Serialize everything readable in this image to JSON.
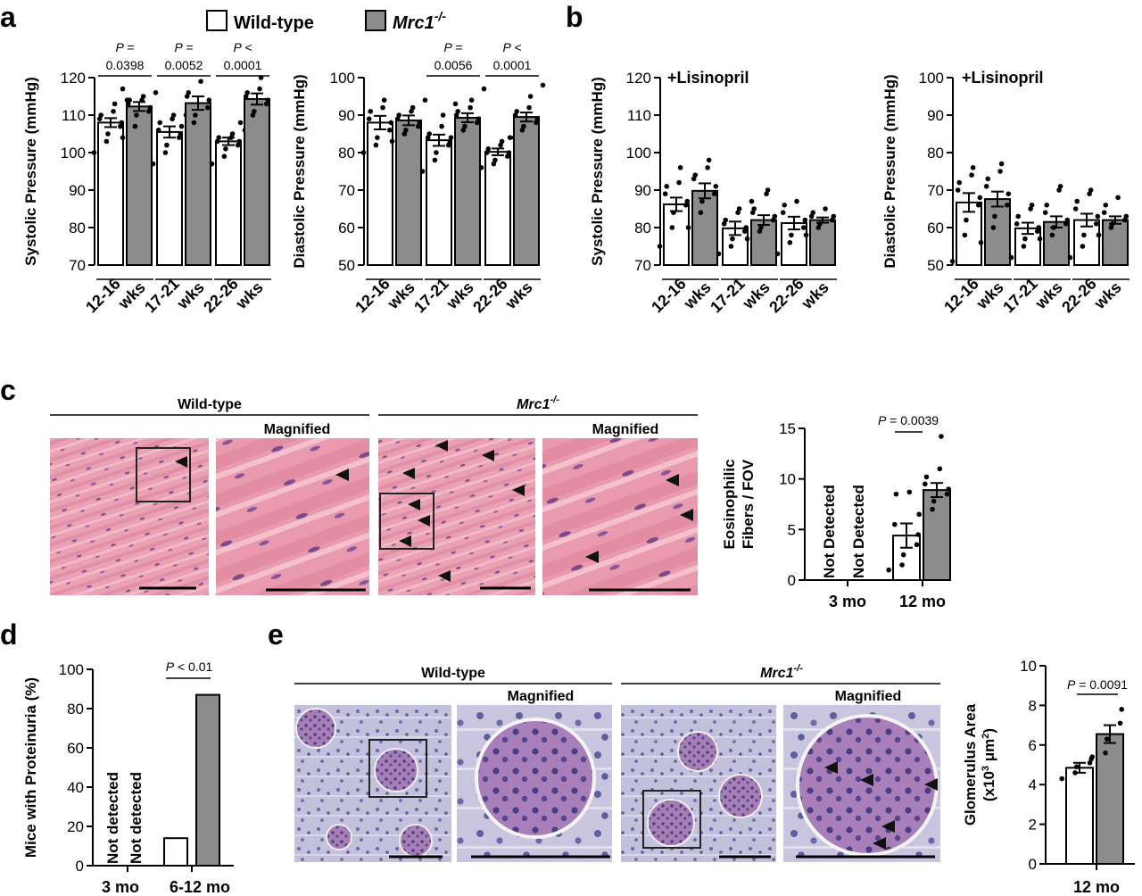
{
  "panel_labels": [
    "a",
    "b",
    "c",
    "d",
    "e"
  ],
  "legend": {
    "wt": "Wild-type",
    "ko": "Mrc1",
    "ko_sup": "-/-"
  },
  "colors": {
    "wt_fill": "#ffffff",
    "ko_fill": "#8c8c8c",
    "axis": "#000000",
    "tissue_pink": "#e8a0b0",
    "tissue_purple": "#b9b5d6"
  },
  "labels": {
    "lisinopril": "+Lisinopril",
    "wt_title": "Wild-type",
    "ko_title": "Mrc1",
    "ko_sup": "-/-",
    "magnified": "Magnified"
  },
  "chart_data": [
    {
      "id": "a_systolic",
      "type": "bar",
      "ylabel": "Systolic Pressure (mmHg)",
      "ylim": [
        70,
        120
      ],
      "yticks": [
        70,
        80,
        90,
        100,
        110,
        120
      ],
      "categories": [
        [
          "12-16",
          "wks"
        ],
        [
          "17-21",
          "wks"
        ],
        [
          "22-26",
          "wks"
        ]
      ],
      "series": [
        {
          "name": "Wild-type",
          "values": [
            108,
            105.5,
            103
          ],
          "sem": [
            1.2,
            1.5,
            1.0
          ],
          "points": [
            [
              100,
              103,
              105,
              107,
              108,
              109,
              110,
              111,
              113,
              114
            ],
            [
              97,
              100,
              102,
              104,
              105,
              106,
              108,
              109,
              110,
              110
            ],
            [
              97,
              99,
              101,
              102,
              103,
              103,
              104,
              104,
              105,
              106
            ]
          ]
        },
        {
          "name": "Mrc1-/-",
          "values": [
            112.3,
            113.2,
            114.3
          ],
          "sem": [
            1.2,
            1.8,
            1.5
          ],
          "points": [
            [
              104,
              107,
              110,
              111,
              112,
              113,
              114,
              114,
              115,
              116,
              117
            ],
            [
              107,
              108,
              110,
              112,
              114,
              115,
              116,
              119
            ],
            [
              108,
              110,
              111,
              113,
              114,
              115,
              116,
              117,
              120
            ]
          ]
        }
      ],
      "pvalues": [
        {
          "prefix": "P =",
          "value": "0.0398"
        },
        {
          "prefix": "P =",
          "value": "0.0052"
        },
        {
          "prefix": "P <",
          "value": "0.0001"
        }
      ]
    },
    {
      "id": "a_diastolic",
      "type": "bar",
      "ylabel": "Diastolic Pressure (mmHg)",
      "ylim": [
        50,
        100
      ],
      "yticks": [
        50,
        60,
        70,
        80,
        90,
        100
      ],
      "categories": [
        [
          "12-16",
          "wks"
        ],
        [
          "17-21",
          "wks"
        ],
        [
          "22-26",
          "wks"
        ]
      ],
      "series": [
        {
          "name": "Wild-type",
          "values": [
            88,
            83.3,
            80.2
          ],
          "sem": [
            1.8,
            1.5,
            0.9
          ],
          "points": [
            [
              80,
              82,
              84,
              86,
              88,
              89,
              91,
              92,
              94
            ],
            [
              75,
              78,
              80,
              82,
              83,
              84,
              85,
              87,
              90,
              93
            ],
            [
              76,
              77,
              78,
              79,
              80,
              80,
              81,
              82,
              83,
              84
            ]
          ]
        },
        {
          "name": "Mrc1-/-",
          "values": [
            88.6,
            89.3,
            89.5
          ],
          "sem": [
            1.3,
            1.2,
            1.2
          ],
          "points": [
            [
              83,
              85,
              86,
              87,
              88,
              89,
              90,
              91,
              92,
              94
            ],
            [
              84,
              86,
              87,
              88,
              89,
              90,
              91,
              92,
              94,
              97
            ],
            [
              84,
              86,
              87,
              88,
              89,
              90,
              91,
              92,
              95,
              98
            ]
          ]
        }
      ],
      "pvalues": [
        null,
        {
          "prefix": "P =",
          "value": "0.0056"
        },
        {
          "prefix": "P <",
          "value": "0.0001"
        }
      ]
    },
    {
      "id": "b_systolic",
      "type": "bar",
      "ylabel": "Systolic Pressure (mmHg)",
      "ylim": [
        70,
        120
      ],
      "yticks": [
        70,
        80,
        90,
        100,
        110,
        120
      ],
      "categories": [
        [
          "12-16",
          "wks"
        ],
        [
          "17-21",
          "wks"
        ],
        [
          "22-26",
          "wks"
        ]
      ],
      "series": [
        {
          "name": "Wild-type",
          "values": [
            86.2,
            79.8,
            81.2
          ],
          "sem": [
            1.8,
            1.8,
            1.7
          ],
          "points": [
            [
              75,
              80,
              84,
              86,
              87,
              89,
              91,
              92,
              96
            ],
            [
              73,
              75,
              77,
              79,
              80,
              81,
              82,
              84,
              85,
              87
            ],
            [
              73,
              76,
              78,
              80,
              82,
              84,
              86,
              87
            ]
          ]
        },
        {
          "name": "Mrc1-/-",
          "values": [
            89.8,
            82,
            82
          ],
          "sem": [
            2.0,
            1.3,
            0.7
          ],
          "points": [
            [
              80,
              84,
              87,
              89,
              91,
              93,
              94,
              96,
              98
            ],
            [
              77,
              79,
              80,
              82,
              83,
              84,
              85,
              89,
              90
            ],
            [
              78,
              80,
              81,
              82,
              83,
              83,
              84,
              85
            ]
          ]
        }
      ]
    },
    {
      "id": "b_diastolic",
      "type": "bar",
      "ylabel": "Diastolic Pressure (mmHg)",
      "ylim": [
        50,
        100
      ],
      "yticks": [
        50,
        60,
        70,
        80,
        90,
        100
      ],
      "categories": [
        [
          "12-16",
          "wks"
        ],
        [
          "17-21",
          "wks"
        ],
        [
          "22-26",
          "wks"
        ]
      ],
      "series": [
        {
          "name": "Wild-type",
          "values": [
            66.7,
            59.8,
            62
          ],
          "sem": [
            2.5,
            1.5,
            1.7
          ],
          "points": [
            [
              51,
              58,
              62,
              66,
              68,
              70,
              72,
              74,
              76
            ],
            [
              52,
              55,
              57,
              59,
              60,
              61,
              63,
              65,
              66
            ],
            [
              52,
              55,
              58,
              61,
              63,
              65,
              67,
              69,
              70
            ]
          ]
        },
        {
          "name": "Mrc1-/-",
          "values": [
            67.6,
            61.5,
            62
          ],
          "sem": [
            2.0,
            1.5,
            1.0
          ],
          "points": [
            [
              56,
              60,
              63,
              66,
              69,
              71,
              73,
              75,
              77
            ],
            [
              57,
              58,
              60,
              61,
              62,
              64,
              66,
              70,
              71
            ],
            [
              58,
              60,
              61,
              62,
              63,
              64,
              66,
              68
            ]
          ]
        }
      ]
    },
    {
      "id": "c_eosino",
      "type": "bar",
      "ylabel": [
        "Eosinophilic",
        "Fibers / FOV"
      ],
      "ylim": [
        0,
        15
      ],
      "yticks": [
        0,
        5,
        10,
        15
      ],
      "categories": [
        "3 mo",
        "12 mo"
      ],
      "not_detected": [
        "Not Detected",
        "Not Detected"
      ],
      "series": [
        {
          "name": "Wild-type",
          "values": [
            null,
            4.4
          ],
          "sem": [
            null,
            1.2
          ],
          "points": [
            [],
            [
              1.0,
              1.5,
              2.5,
              3.5,
              4.5,
              5.5,
              8.5,
              8.7
            ]
          ]
        },
        {
          "name": "Mrc1-/-",
          "values": [
            null,
            8.9
          ],
          "sem": [
            null,
            0.7
          ],
          "points": [
            [],
            [
              6.5,
              7.0,
              7.8,
              8.5,
              9.0,
              9.5,
              10.2,
              11.0,
              14.2
            ]
          ]
        }
      ],
      "pvalue": {
        "prefix": "P",
        "rest": " = 0.0039"
      }
    },
    {
      "id": "d_proteinuria",
      "type": "bar",
      "ylabel": "Mice with Proteinuria (%)",
      "ylim": [
        0,
        100
      ],
      "yticks": [
        0,
        20,
        40,
        60,
        80,
        100
      ],
      "categories": [
        "3 mo",
        "6-12 mo"
      ],
      "not_detected": [
        "Not detected",
        "Not detected"
      ],
      "series": [
        {
          "name": "Wild-type",
          "values": [
            null,
            14
          ]
        },
        {
          "name": "Mrc1-/-",
          "values": [
            null,
            87
          ]
        }
      ],
      "pvalue": {
        "prefix": "P",
        "rest": " < 0.01"
      }
    },
    {
      "id": "e_glomerulus",
      "type": "bar",
      "ylabel": [
        "Glomerulus Area",
        "(x10",
        "3",
        " μm",
        "2",
        ")"
      ],
      "ylim": [
        0,
        10
      ],
      "yticks": [
        0,
        2,
        4,
        6,
        8,
        10
      ],
      "categories": [
        "12 mo"
      ],
      "series": [
        {
          "name": "Wild-type",
          "values": [
            4.85
          ],
          "sem": [
            0.25
          ],
          "points": [
            [
              4.3,
              4.6,
              4.9,
              5.1,
              5.3
            ]
          ]
        },
        {
          "name": "Mrc1-/-",
          "values": [
            6.55
          ],
          "sem": [
            0.45
          ],
          "points": [
            [
              5.4,
              5.6,
              6.3,
              7.1,
              7.8
            ]
          ]
        }
      ],
      "pvalue": {
        "prefix": "P",
        "rest": " = 0.0091"
      }
    }
  ]
}
